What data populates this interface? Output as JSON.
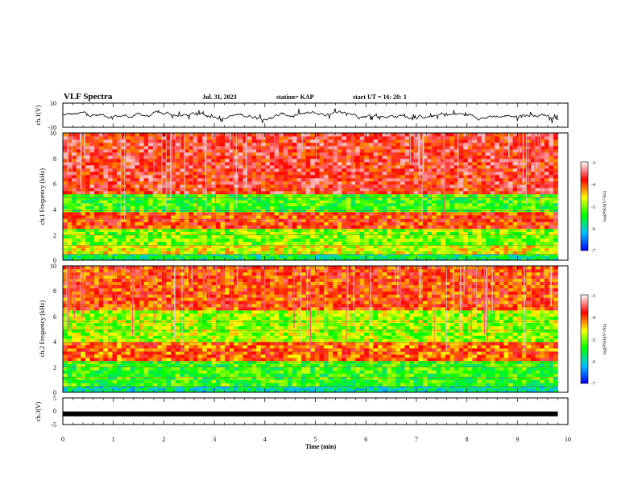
{
  "header": {
    "title": "VLF Spectra",
    "date": "Jul. 31, 2023",
    "station": "station= KAP",
    "start_ut": "start UT = 16: 20: 1"
  },
  "colorbar": {
    "label": "log(PSD)(V²/Hz)",
    "ticks": [
      "-3",
      "-4",
      "-5",
      "-6",
      "-7"
    ],
    "colors": [
      "#ffffff",
      "#ff0000",
      "#ffff00",
      "#00ff00",
      "#00c0ff",
      "#0000ff",
      "#000000"
    ]
  },
  "chart_data": [
    {
      "type": "line",
      "name": "ch1-voltage",
      "ylabel": "ch.1(V)",
      "ylim": [
        -10,
        10
      ],
      "yticks": [
        "10",
        "-10"
      ],
      "xlim": [
        0,
        10
      ],
      "approx_range_V": [
        -8,
        7
      ],
      "color": "#000000"
    },
    {
      "type": "heatmap",
      "name": "ch1-spectrogram",
      "ylabel": "ch.1 Frequency (kHz)",
      "ylim": [
        0,
        10
      ],
      "yticks": [
        "0",
        "2",
        "4",
        "6",
        "8",
        "10"
      ],
      "xlim": [
        0,
        9.8
      ],
      "clim": [
        -7,
        -3
      ],
      "bands": [
        {
          "f_range": [
            0,
            0.5
          ],
          "level": -5.2
        },
        {
          "f_range": [
            0.5,
            1.2
          ],
          "level": -4.4
        },
        {
          "f_range": [
            1.2,
            2.5
          ],
          "level": -4.7
        },
        {
          "f_range": [
            2.5,
            3.8
          ],
          "level": -3.8
        },
        {
          "f_range": [
            3.8,
            5.2
          ],
          "level": -4.9
        },
        {
          "f_range": [
            5.2,
            10
          ],
          "level": -3.6
        }
      ]
    },
    {
      "type": "heatmap",
      "name": "ch2-spectrogram",
      "ylabel": "ch.2 Frequency (kHz)",
      "ylim": [
        0,
        10
      ],
      "yticks": [
        "0",
        "2",
        "4",
        "6",
        "8",
        "10"
      ],
      "xlim": [
        0,
        9.8
      ],
      "clim": [
        -7,
        -3
      ],
      "bands": [
        {
          "f_range": [
            0,
            0.5
          ],
          "level": -5.4
        },
        {
          "f_range": [
            0.5,
            2.5
          ],
          "level": -4.9
        },
        {
          "f_range": [
            2.5,
            4.0
          ],
          "level": -3.9
        },
        {
          "f_range": [
            4.0,
            6.5
          ],
          "level": -4.6
        },
        {
          "f_range": [
            6.5,
            10
          ],
          "level": -3.8
        }
      ]
    },
    {
      "type": "line",
      "name": "ch3-voltage",
      "ylabel": "ch.3(V)",
      "ylim": [
        -5,
        5
      ],
      "yticks": [
        "5",
        "0",
        "-5"
      ],
      "xlim": [
        0,
        10
      ],
      "xlabel": "Time (min)",
      "xticks": [
        "0",
        "1",
        "2",
        "3",
        "4",
        "5",
        "6",
        "7",
        "8",
        "9",
        "10"
      ],
      "values_V": [
        -1,
        -1
      ],
      "color": "#000000"
    }
  ]
}
